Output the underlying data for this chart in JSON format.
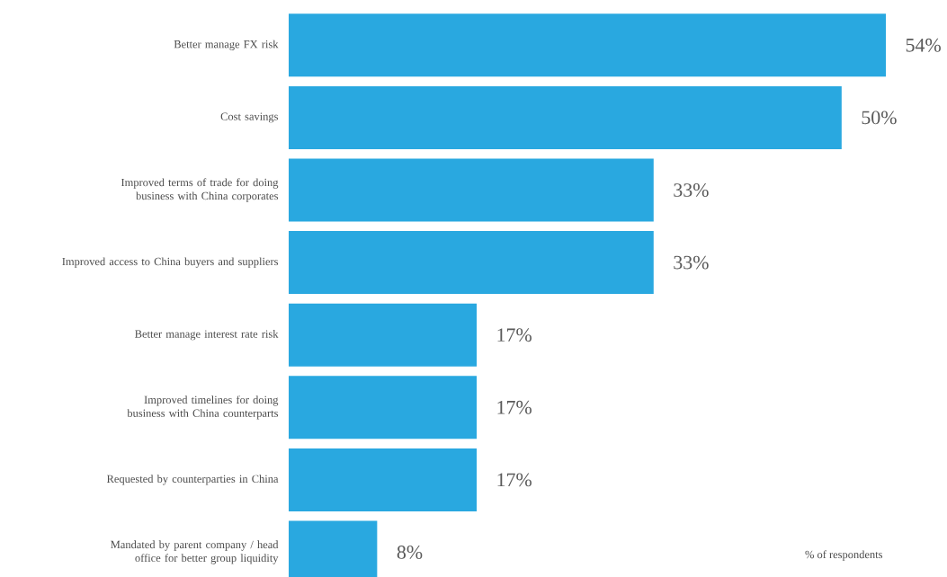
{
  "chart_data": {
    "type": "bar",
    "orientation": "horizontal",
    "categories": [
      "Better manage FX risk",
      "Cost savings",
      "Improved terms of trade for doing business with China corporates",
      "Improved access to China buyers and suppliers",
      "Better manage interest rate risk",
      "Improved timelines for doing business with China counterparts",
      "Requested by counterparties in China",
      "Mandated by parent company / head office for better group liquidity"
    ],
    "values": [
      54,
      50,
      33,
      33,
      17,
      17,
      17,
      8
    ],
    "value_labels": [
      "54%",
      "50%",
      "33%",
      "33%",
      "17%",
      "17%",
      "17%",
      "8%"
    ],
    "color": "#29a8e0",
    "annotations": [
      "% of respondents"
    ]
  }
}
